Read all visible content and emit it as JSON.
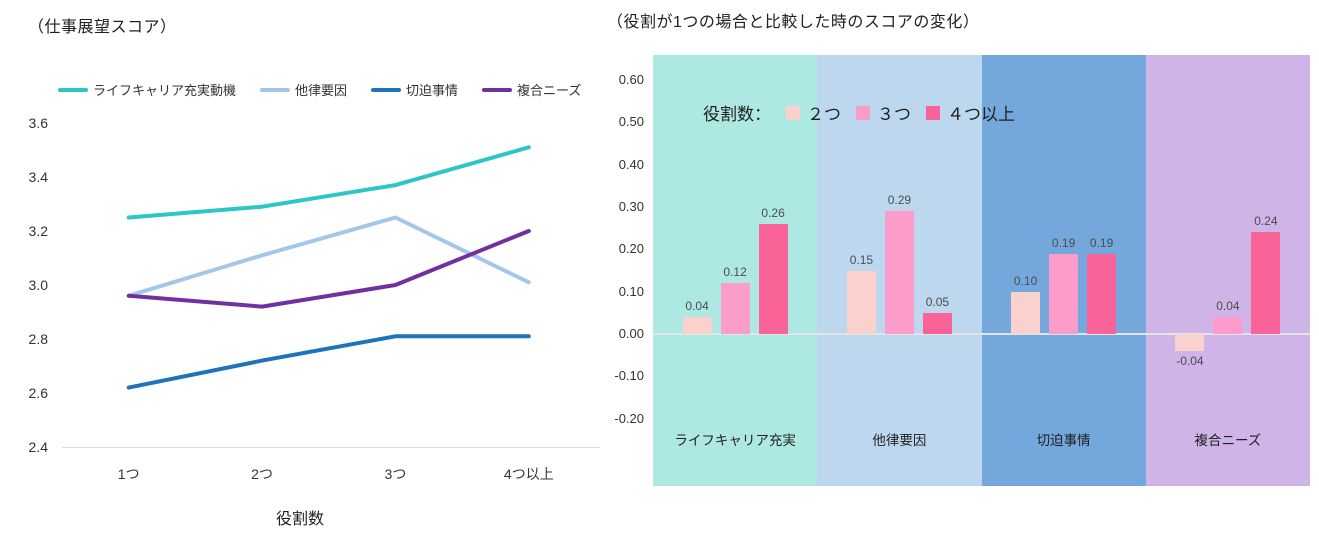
{
  "left_chart": {
    "title": "（仕事展望スコア）",
    "xlabel": "役割数"
  },
  "right_chart": {
    "title": "（役割が1つの場合と比較した時のスコアの変化）",
    "legend_title": "役割数："
  },
  "chart_data": [
    {
      "type": "line",
      "title": "（仕事展望スコア）",
      "xlabel": "役割数",
      "categories": [
        "1つ",
        "2つ",
        "3つ",
        "4つ以上"
      ],
      "series": [
        {
          "name": "ライフキャリア充実動機",
          "color": "#2bc6c6",
          "values": [
            3.25,
            3.29,
            3.37,
            3.51
          ]
        },
        {
          "name": "他律要因",
          "color": "#a3c6e9",
          "values": [
            2.96,
            3.11,
            3.25,
            3.01
          ]
        },
        {
          "name": "切迫事情",
          "color": "#1f72bc",
          "values": [
            2.62,
            2.72,
            2.81,
            2.81
          ]
        },
        {
          "name": "複合ニーズ",
          "color": "#7030a0",
          "values": [
            2.96,
            2.92,
            3.0,
            3.2
          ]
        }
      ],
      "ylim": [
        2.4,
        3.6
      ],
      "yticks": [
        "3.6",
        "3.4",
        "3.2",
        "3.0",
        "2.8",
        "2.6",
        "2.4"
      ],
      "grid": false,
      "legend_position": "top"
    },
    {
      "type": "bar",
      "title": "（役割が1つの場合と比較した時のスコアの変化）",
      "legend_title": "役割数：",
      "categories": [
        "ライフキャリア充実",
        "他律要因",
        "切迫事情",
        "複合ニーズ"
      ],
      "band_colors": [
        "#aee8e2",
        "#bdd7ee",
        "#74a7db",
        "#cfb4e8"
      ],
      "series": [
        {
          "name": "２つ",
          "color": "#fbd1ce",
          "values": [
            0.04,
            0.15,
            0.1,
            -0.04
          ],
          "labels": [
            "0.04",
            "0.15",
            "0.10",
            "-0.04"
          ]
        },
        {
          "name": "３つ",
          "color": "#fb9ccb",
          "values": [
            0.12,
            0.29,
            0.19,
            0.04
          ],
          "labels": [
            "0.12",
            "0.29",
            "0.19",
            "0.04"
          ]
        },
        {
          "name": "４つ以上",
          "color": "#fa6397",
          "values": [
            0.26,
            0.05,
            0.19,
            0.24
          ],
          "labels": [
            "0.26",
            "0.05",
            "0.19",
            "0.24"
          ]
        }
      ],
      "ylim": [
        -0.2,
        0.6
      ],
      "yticks": [
        "0.60",
        "0.50",
        "0.40",
        "0.30",
        "0.20",
        "0.10",
        "0.00",
        "-0.10",
        "-0.20"
      ],
      "grid": false,
      "legend_position": "top-inside"
    }
  ]
}
